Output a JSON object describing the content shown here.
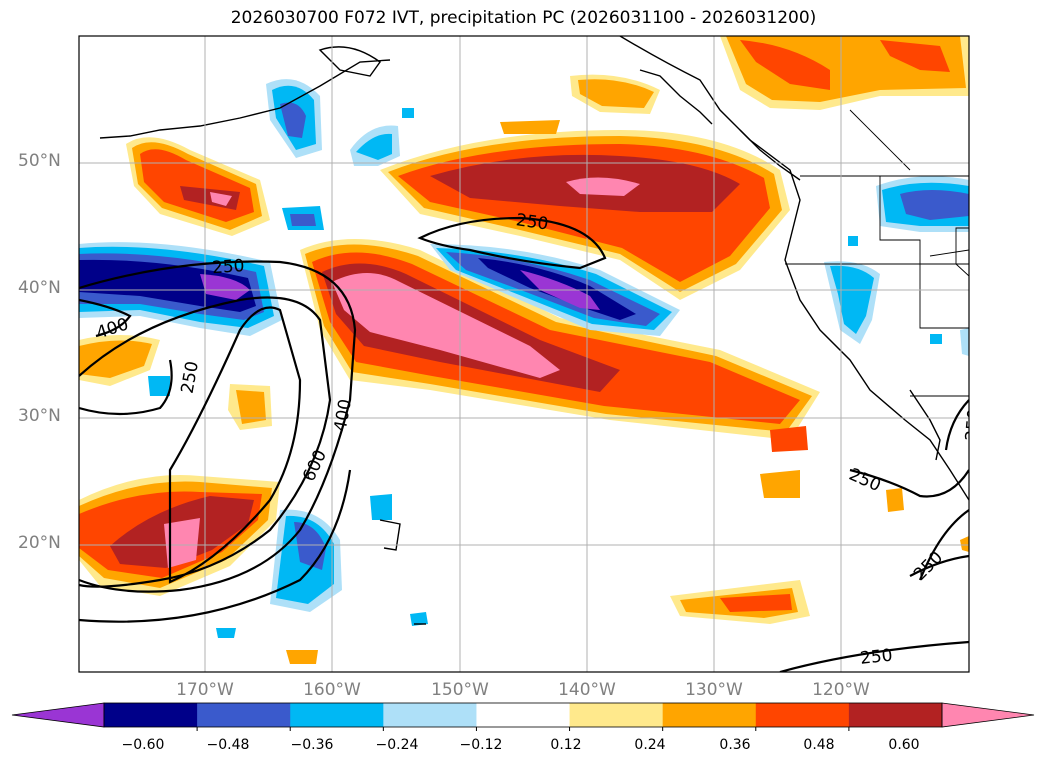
{
  "title": "2026030700 F072 IVT, precipitation PC (2026031100 - 2026031200)",
  "lat_labels": [
    "50°N",
    "40°N",
    "30°N",
    "20°N"
  ],
  "lon_labels": [
    "170°W",
    "160°W",
    "150°W",
    "140°W",
    "130°W",
    "120°W"
  ],
  "contour_labels": [
    "250",
    "250",
    "400",
    "250",
    "400",
    "600",
    "250",
    "250",
    "250",
    "250"
  ],
  "colorbar": {
    "ticks": [
      "−0.60",
      "−0.48",
      "−0.36",
      "−0.24",
      "−0.12",
      "0.12",
      "0.24",
      "0.36",
      "0.48",
      "0.60"
    ],
    "colors": [
      "#9a35d4",
      "#000089",
      "#3a5acc",
      "#00b8f4",
      "#aee0f8",
      "#ffffff",
      "#ffe98c",
      "#ffa500",
      "#ff4500",
      "#b22222",
      "#ff86b0"
    ]
  },
  "colors": {
    "precip_high": "#ff86b0",
    "precip_mid": "#b22222",
    "precip_low": "#ff4500",
    "precip_weak": "#ffa500",
    "precip_min": "#ffe98c",
    "neg_weak": "#aee0f8",
    "neg_low": "#00b8f4",
    "neg_mid": "#3a5acc",
    "neg_high": "#000089",
    "neg_max": "#9a35d4"
  }
}
